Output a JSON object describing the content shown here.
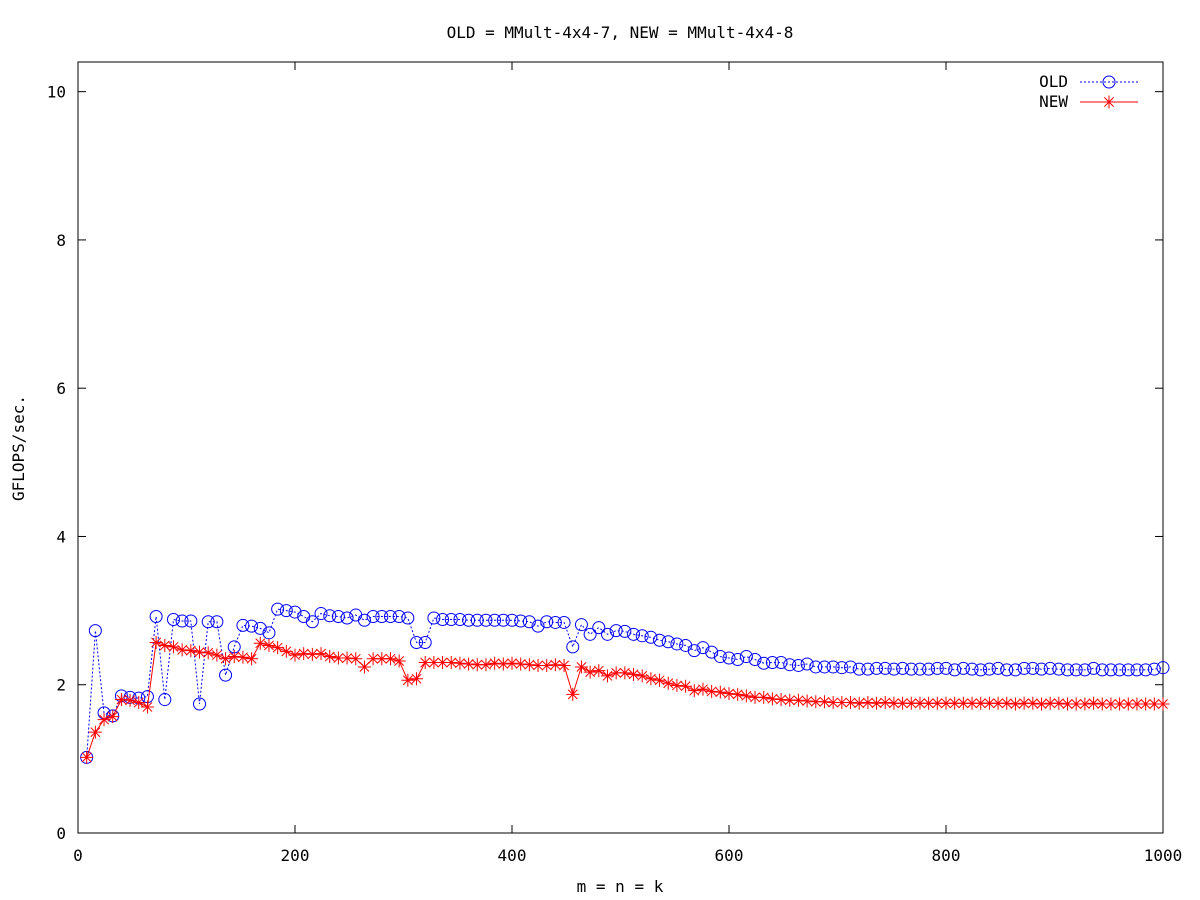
{
  "chart_data": {
    "type": "line",
    "title": "OLD = MMult-4x4-7, NEW = MMult-4x4-8",
    "xlabel": "m = n = k",
    "ylabel": "GFLOPS/sec.",
    "xlim": [
      0,
      1000
    ],
    "ylim": [
      0,
      10.4
    ],
    "x_ticks": [
      0,
      200,
      400,
      600,
      800,
      1000
    ],
    "y_ticks": [
      0,
      2,
      4,
      6,
      8,
      10
    ],
    "grid": false,
    "legend_position": "top-right",
    "x": [
      8,
      16,
      24,
      32,
      40,
      48,
      56,
      64,
      72,
      80,
      88,
      96,
      104,
      112,
      120,
      128,
      136,
      144,
      152,
      160,
      168,
      176,
      184,
      192,
      200,
      208,
      216,
      224,
      232,
      240,
      248,
      256,
      264,
      272,
      280,
      288,
      296,
      304,
      312,
      320,
      328,
      336,
      344,
      352,
      360,
      368,
      376,
      384,
      392,
      400,
      408,
      416,
      424,
      432,
      440,
      448,
      456,
      464,
      472,
      480,
      488,
      496,
      504,
      512,
      520,
      528,
      536,
      544,
      552,
      560,
      568,
      576,
      584,
      592,
      600,
      608,
      616,
      624,
      632,
      640,
      648,
      656,
      664,
      672,
      680,
      688,
      696,
      704,
      712,
      720,
      728,
      736,
      744,
      752,
      760,
      768,
      776,
      784,
      792,
      800,
      808,
      816,
      824,
      832,
      840,
      848,
      856,
      864,
      872,
      880,
      888,
      896,
      904,
      912,
      920,
      928,
      936,
      944,
      952,
      960,
      968,
      976,
      984,
      992,
      1000
    ],
    "series": [
      {
        "name": "OLD",
        "color": "#0000ff",
        "line_style": "dotted",
        "marker": "circle",
        "values": [
          1.02,
          2.73,
          1.62,
          1.58,
          1.85,
          1.83,
          1.82,
          1.84,
          2.92,
          1.8,
          2.88,
          2.86,
          2.86,
          1.74,
          2.85,
          2.85,
          2.13,
          2.51,
          2.8,
          2.79,
          2.76,
          2.7,
          3.02,
          3.0,
          2.98,
          2.92,
          2.85,
          2.96,
          2.93,
          2.92,
          2.9,
          2.94,
          2.87,
          2.92,
          2.92,
          2.92,
          2.92,
          2.9,
          2.57,
          2.57,
          2.9,
          2.88,
          2.88,
          2.88,
          2.87,
          2.87,
          2.87,
          2.87,
          2.87,
          2.87,
          2.86,
          2.85,
          2.79,
          2.85,
          2.84,
          2.84,
          2.51,
          2.81,
          2.68,
          2.77,
          2.68,
          2.73,
          2.72,
          2.68,
          2.66,
          2.64,
          2.6,
          2.58,
          2.55,
          2.53,
          2.46,
          2.5,
          2.44,
          2.38,
          2.36,
          2.34,
          2.38,
          2.34,
          2.29,
          2.3,
          2.3,
          2.27,
          2.26,
          2.28,
          2.24,
          2.24,
          2.24,
          2.23,
          2.24,
          2.21,
          2.21,
          2.22,
          2.22,
          2.21,
          2.22,
          2.21,
          2.21,
          2.21,
          2.22,
          2.22,
          2.2,
          2.22,
          2.21,
          2.2,
          2.21,
          2.22,
          2.2,
          2.2,
          2.22,
          2.22,
          2.21,
          2.22,
          2.21,
          2.2,
          2.2,
          2.2,
          2.22,
          2.2,
          2.2,
          2.2,
          2.2,
          2.2,
          2.2,
          2.21,
          2.23
        ]
      },
      {
        "name": "NEW",
        "color": "#ff0000",
        "line_style": "solid",
        "marker": "star",
        "values": [
          1.02,
          1.36,
          1.53,
          1.57,
          1.8,
          1.79,
          1.76,
          1.7,
          2.57,
          2.53,
          2.51,
          2.47,
          2.46,
          2.44,
          2.43,
          2.4,
          2.35,
          2.38,
          2.37,
          2.35,
          2.56,
          2.53,
          2.5,
          2.45,
          2.4,
          2.42,
          2.41,
          2.42,
          2.38,
          2.36,
          2.36,
          2.35,
          2.24,
          2.35,
          2.35,
          2.35,
          2.32,
          2.06,
          2.08,
          2.3,
          2.3,
          2.3,
          2.3,
          2.29,
          2.28,
          2.27,
          2.27,
          2.29,
          2.28,
          2.29,
          2.28,
          2.27,
          2.26,
          2.26,
          2.27,
          2.26,
          1.87,
          2.24,
          2.17,
          2.19,
          2.12,
          2.16,
          2.16,
          2.14,
          2.12,
          2.08,
          2.06,
          2.02,
          1.99,
          1.98,
          1.92,
          1.94,
          1.91,
          1.9,
          1.88,
          1.87,
          1.85,
          1.83,
          1.83,
          1.81,
          1.8,
          1.79,
          1.79,
          1.78,
          1.77,
          1.77,
          1.76,
          1.76,
          1.76,
          1.75,
          1.76,
          1.75,
          1.76,
          1.75,
          1.75,
          1.75,
          1.75,
          1.75,
          1.75,
          1.75,
          1.75,
          1.75,
          1.75,
          1.75,
          1.75,
          1.75,
          1.75,
          1.74,
          1.75,
          1.75,
          1.74,
          1.75,
          1.75,
          1.74,
          1.74,
          1.74,
          1.75,
          1.74,
          1.74,
          1.74,
          1.74,
          1.74,
          1.74,
          1.74,
          1.74
        ]
      }
    ]
  }
}
